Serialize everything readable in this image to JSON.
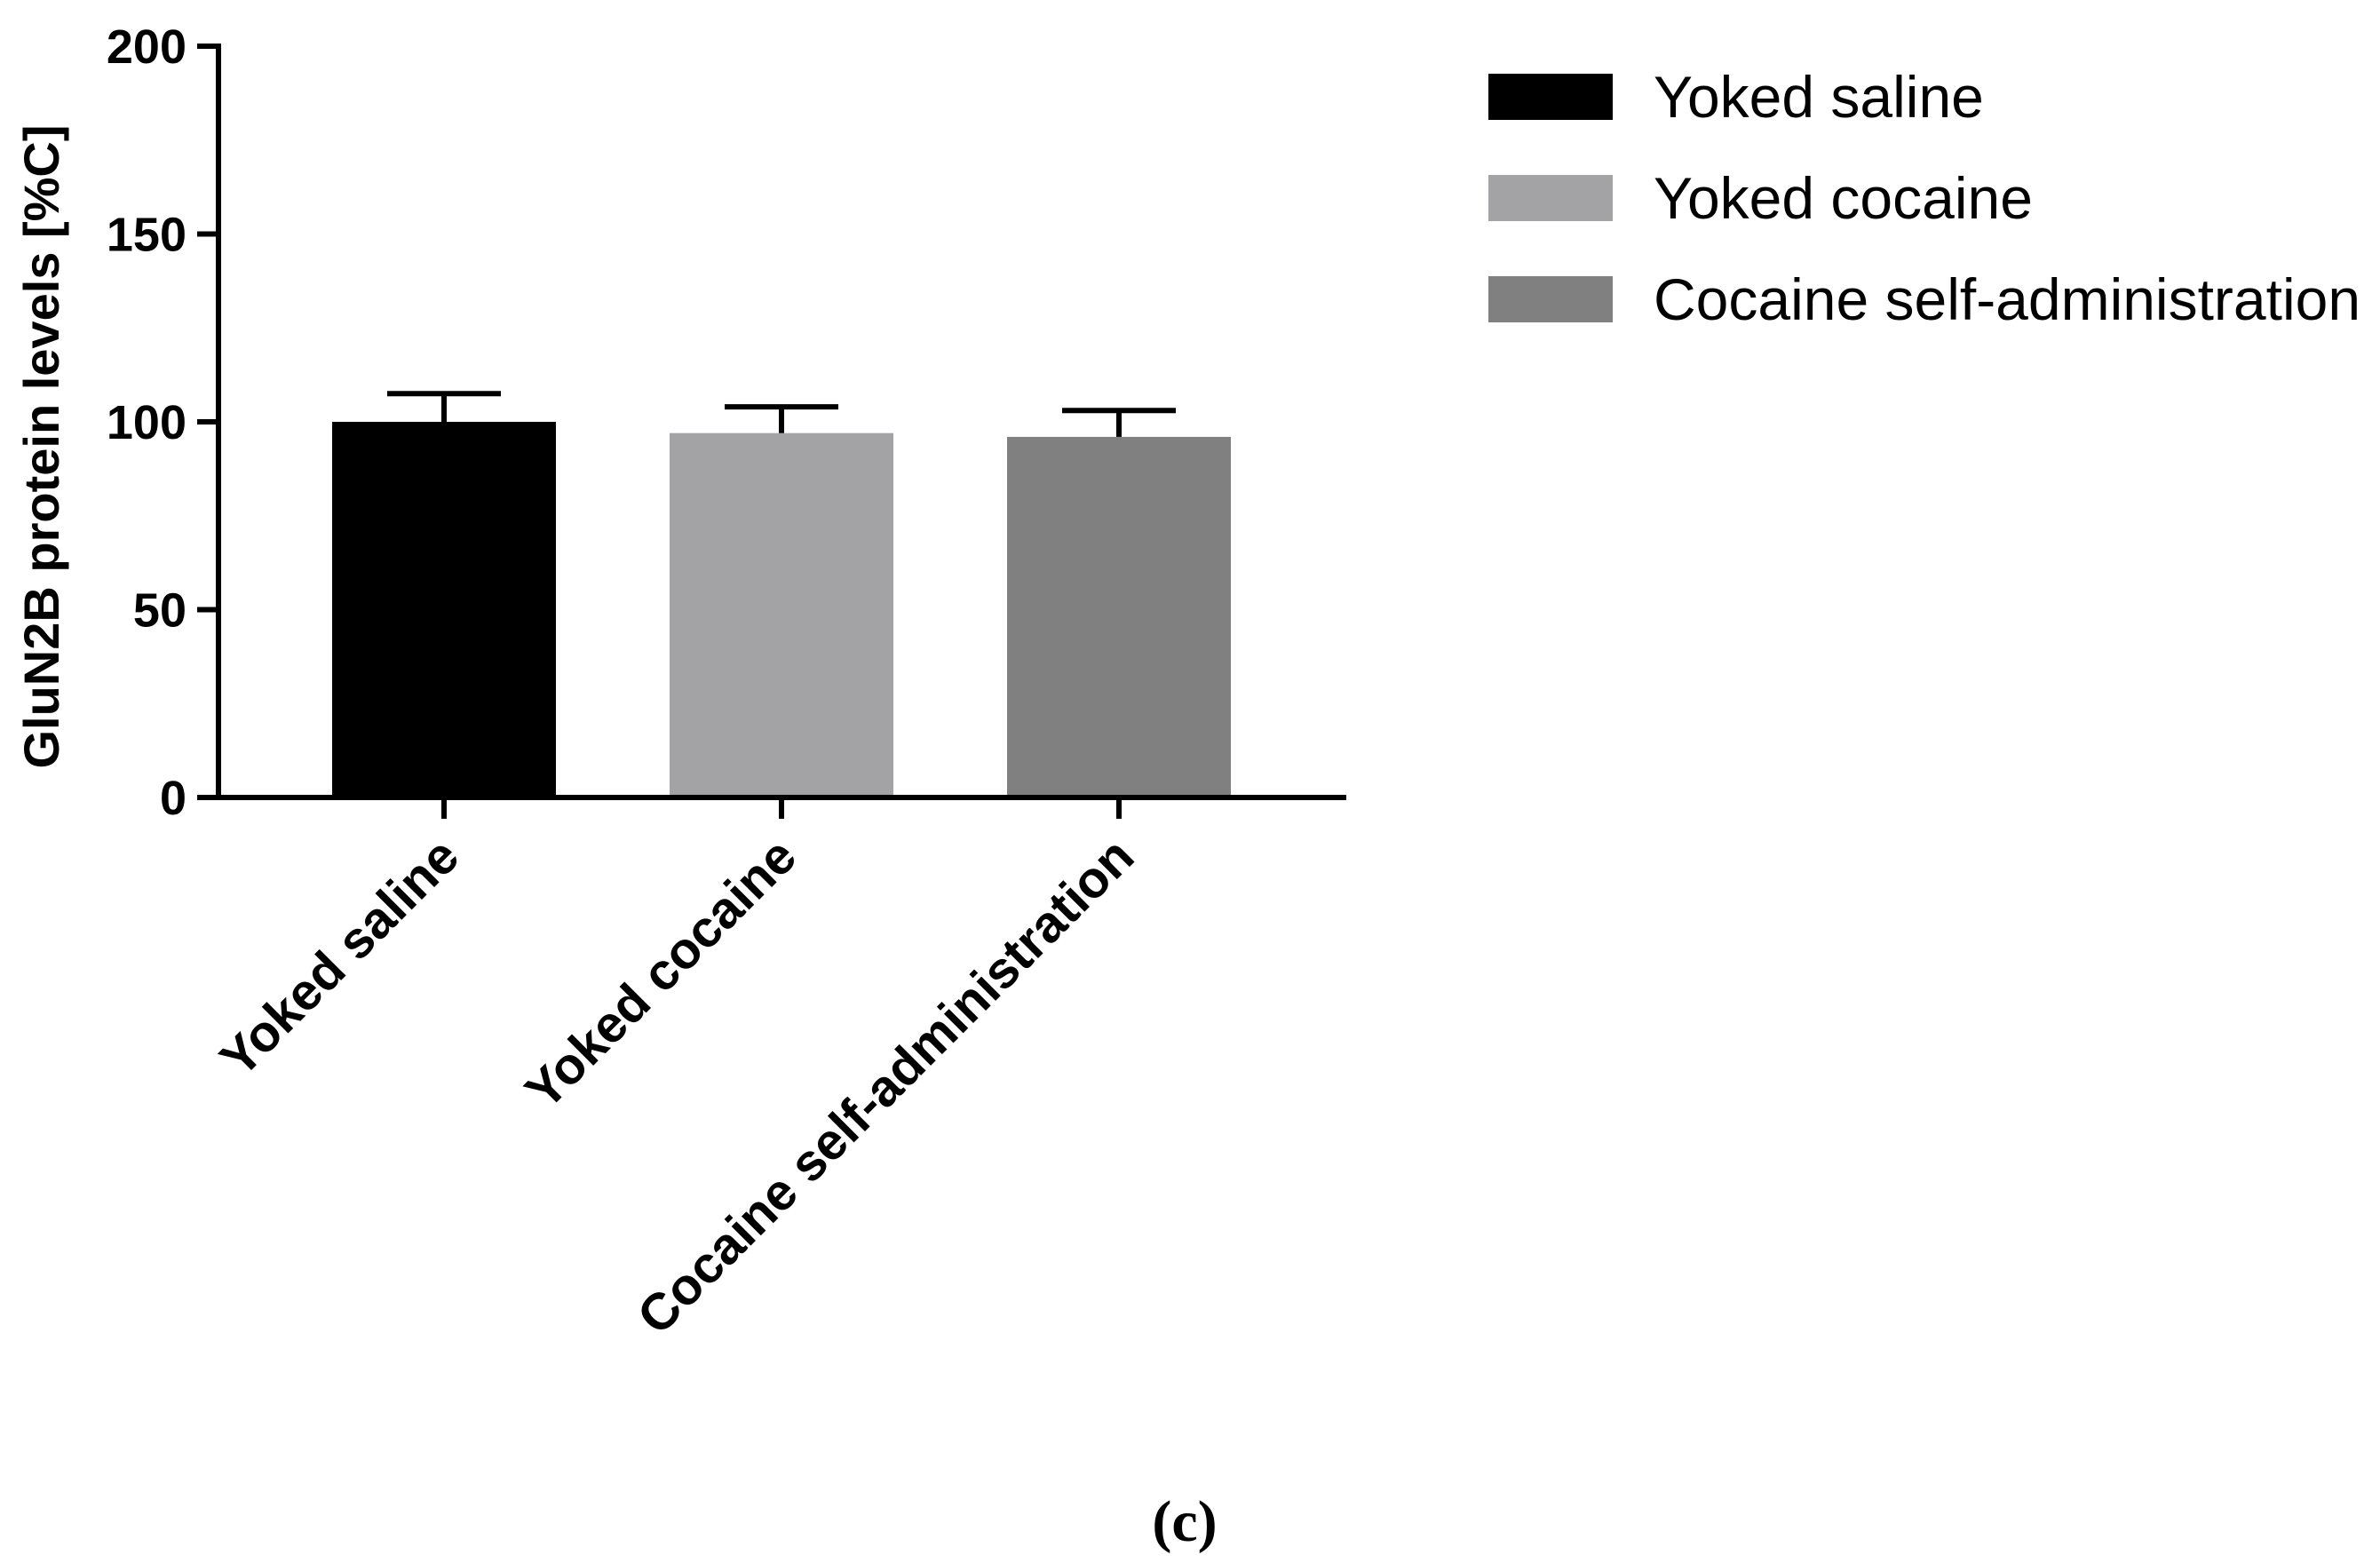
{
  "chart_data": {
    "type": "bar",
    "categories": [
      "Yoked saline",
      "Yoked cocaine",
      "Cocaine self-administration"
    ],
    "values": [
      100,
      97,
      96
    ],
    "errors": [
      7.5,
      7,
      7
    ],
    "ylabel": "GluN2B protein levels [%C]",
    "xlabel": "",
    "ylim": [
      0,
      200
    ],
    "yticks": [
      0,
      50,
      100,
      150,
      200
    ],
    "colors": [
      "#000000",
      "#a3a3a6",
      "#808080"
    ],
    "legend": {
      "position": "top-right",
      "entries": [
        {
          "name": "Yoked saline",
          "color": "#000000"
        },
        {
          "name": "Yoked cocaine",
          "color": "#a3a3a6"
        },
        {
          "name": "Cocaine self-administration",
          "color": "#808080"
        }
      ]
    },
    "grid": false
  },
  "panel_label": "(c)"
}
